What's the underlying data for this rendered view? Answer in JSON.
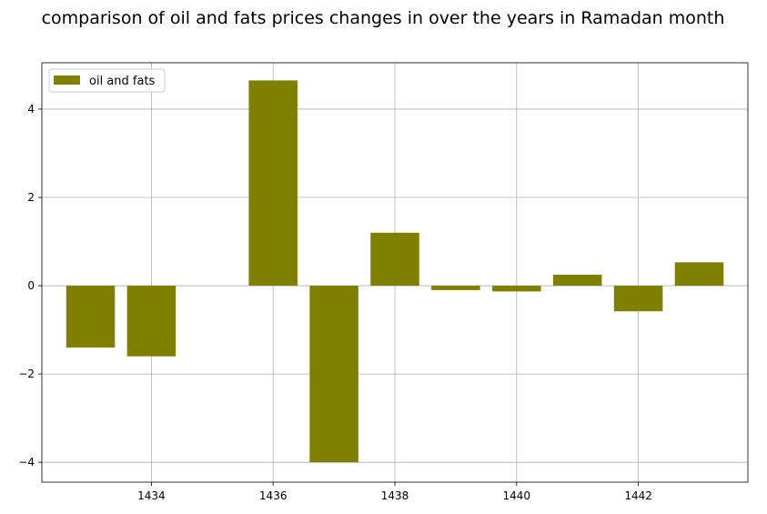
{
  "chart_data": {
    "type": "bar",
    "title": "comparison of oil and fats prices changes in over the years in Ramadan month",
    "xlabel": "",
    "ylabel": "",
    "x": [
      1433,
      1434,
      1436,
      1437,
      1438,
      1439,
      1440,
      1441,
      1442,
      1443
    ],
    "series": [
      {
        "name": "oil and fats",
        "values": [
          -1.4,
          -1.6,
          4.65,
          -4.0,
          1.2,
          -0.1,
          -0.13,
          0.25,
          -0.58,
          0.53
        ],
        "color": "#808000"
      }
    ],
    "xlim": [
      1432.2,
      1443.8
    ],
    "ylim": [
      -4.45,
      5.05
    ],
    "xticks": [
      1434,
      1436,
      1438,
      1440,
      1442
    ],
    "yticks": [
      -4,
      -2,
      0,
      2,
      4
    ],
    "grid": true,
    "legend_position": "top-left"
  }
}
